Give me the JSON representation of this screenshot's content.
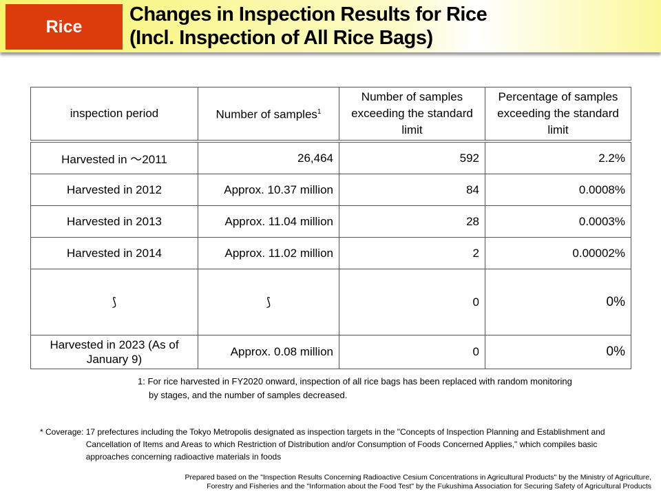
{
  "header": {
    "tag": "Rice",
    "title_line1": "Changes in Inspection Results for Rice",
    "title_line2": "(Incl. Inspection of All Rice Bags)"
  },
  "table": {
    "headers": [
      "inspection period",
      "Number of samples",
      "Number of samples exceeding the standard limit",
      "Percentage of samples exceeding the standard limit"
    ],
    "header_sup": "1",
    "rows": [
      [
        "Harvested in ～2011",
        "26,464",
        "592",
        "2.2%"
      ],
      [
        "Harvested in 2012",
        "Approx. 10.37 million",
        "84",
        "0.0008%"
      ],
      [
        "Harvested in 2013",
        "Approx. 11.04 million",
        "28",
        "0.0003%"
      ],
      [
        "Harvested in 2014",
        "Approx. 11.02 million",
        "2",
        "0.00002%"
      ],
      [
        "⟆",
        "⟆",
        "0",
        "0%"
      ],
      [
        "Harvested in 2023 (As of January 9)",
        "Approx. 0.08 million",
        "0",
        "0%"
      ]
    ]
  },
  "notes": {
    "footnote1_line1": "1: For rice harvested in FY2020 onward, inspection of all rice bags has been replaced with random monitoring",
    "footnote1_line2": "by stages, and the number of samples decreased.",
    "coverage_label": "* Coverage: ",
    "coverage_text": "17 prefectures including the Tokyo Metropolis designated as inspection targets in the \"Concepts of Inspection Planning and Establishment and Cancellation of Items and Areas to which Restriction of Distribution and/or Consumption of Foods Concerned Applies,\" which compiles basic approaches concerning radioactive materials in foods",
    "source_line1": "Prepared based on the \"Inspection Results Concerning Radioactive Cesium Concentrations in Agricultural Products\" by the Ministry of Agriculture,",
    "source_line2": "Forestry and Fisheries and  the \"Information about the Food Test\" by the Fukushima Association for Securing Safety of Agricultural Products"
  }
}
